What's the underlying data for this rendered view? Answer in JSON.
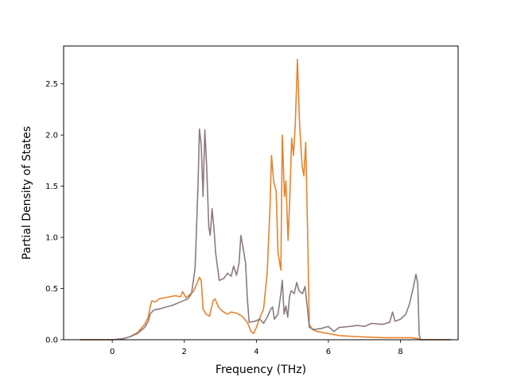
{
  "chart_data": {
    "type": "line",
    "title": "",
    "xlabel": "Frequency (THz)",
    "ylabel": "Partial Density of States",
    "xlim": [
      -1.35,
      9.6
    ],
    "ylim": [
      0,
      2.87
    ],
    "xticks": [
      0,
      2,
      4,
      6,
      8
    ],
    "xtick_labels": [
      "0",
      "2",
      "4",
      "6",
      "8"
    ],
    "yticks": [
      0.0,
      0.5,
      1.0,
      1.5,
      2.0,
      2.5
    ],
    "ytick_labels": [
      "0.0",
      "0.5",
      "1.0",
      "1.5",
      "2.0",
      "2.5"
    ],
    "grid": false,
    "legend": "none",
    "series": [
      {
        "color": "#e8832b",
        "points": [
          [
            -0.9,
            0.0
          ],
          [
            0.0,
            0.0
          ],
          [
            0.3,
            0.01
          ],
          [
            0.5,
            0.03
          ],
          [
            0.7,
            0.07
          ],
          [
            0.9,
            0.15
          ],
          [
            1.0,
            0.22
          ],
          [
            1.05,
            0.32
          ],
          [
            1.1,
            0.38
          ],
          [
            1.2,
            0.37
          ],
          [
            1.3,
            0.4
          ],
          [
            1.45,
            0.41
          ],
          [
            1.6,
            0.42
          ],
          [
            1.75,
            0.43
          ],
          [
            1.9,
            0.42
          ],
          [
            1.95,
            0.47
          ],
          [
            2.05,
            0.41
          ],
          [
            2.15,
            0.44
          ],
          [
            2.25,
            0.47
          ],
          [
            2.35,
            0.55
          ],
          [
            2.42,
            0.61
          ],
          [
            2.47,
            0.58
          ],
          [
            2.52,
            0.3
          ],
          [
            2.6,
            0.25
          ],
          [
            2.7,
            0.23
          ],
          [
            2.8,
            0.38
          ],
          [
            2.85,
            0.4
          ],
          [
            2.95,
            0.32
          ],
          [
            3.05,
            0.28
          ],
          [
            3.2,
            0.25
          ],
          [
            3.3,
            0.27
          ],
          [
            3.45,
            0.26
          ],
          [
            3.6,
            0.23
          ],
          [
            3.75,
            0.17
          ],
          [
            3.85,
            0.08
          ],
          [
            3.92,
            0.06
          ],
          [
            4.0,
            0.12
          ],
          [
            4.1,
            0.22
          ],
          [
            4.2,
            0.3
          ],
          [
            4.3,
            0.65
          ],
          [
            4.38,
            1.3
          ],
          [
            4.42,
            1.8
          ],
          [
            4.48,
            1.55
          ],
          [
            4.55,
            1.45
          ],
          [
            4.6,
            0.85
          ],
          [
            4.68,
            0.68
          ],
          [
            4.72,
            2.0
          ],
          [
            4.78,
            1.4
          ],
          [
            4.82,
            1.55
          ],
          [
            4.88,
            0.97
          ],
          [
            4.93,
            1.4
          ],
          [
            4.98,
            1.97
          ],
          [
            5.03,
            1.8
          ],
          [
            5.08,
            2.1
          ],
          [
            5.14,
            2.74
          ],
          [
            5.2,
            2.1
          ],
          [
            5.27,
            1.7
          ],
          [
            5.32,
            1.6
          ],
          [
            5.37,
            1.93
          ],
          [
            5.42,
            1.1
          ],
          [
            5.47,
            0.15
          ],
          [
            5.55,
            0.1
          ],
          [
            5.7,
            0.08
          ],
          [
            6.0,
            0.06
          ],
          [
            6.3,
            0.04
          ],
          [
            6.8,
            0.03
          ],
          [
            7.2,
            0.025
          ],
          [
            7.5,
            0.02
          ],
          [
            8.0,
            0.02
          ],
          [
            8.3,
            0.02
          ],
          [
            8.5,
            0.01
          ],
          [
            8.55,
            0.0
          ],
          [
            9.4,
            0.0
          ]
        ]
      },
      {
        "color": "#8c7a7f",
        "points": [
          [
            -0.9,
            0.0
          ],
          [
            0.0,
            0.0
          ],
          [
            0.3,
            0.01
          ],
          [
            0.5,
            0.03
          ],
          [
            0.7,
            0.06
          ],
          [
            0.9,
            0.12
          ],
          [
            1.0,
            0.18
          ],
          [
            1.05,
            0.25
          ],
          [
            1.15,
            0.29
          ],
          [
            1.3,
            0.3
          ],
          [
            1.5,
            0.32
          ],
          [
            1.7,
            0.34
          ],
          [
            1.9,
            0.37
          ],
          [
            2.1,
            0.4
          ],
          [
            2.2,
            0.45
          ],
          [
            2.3,
            0.7
          ],
          [
            2.38,
            1.5
          ],
          [
            2.42,
            2.06
          ],
          [
            2.47,
            1.9
          ],
          [
            2.52,
            1.4
          ],
          [
            2.57,
            2.05
          ],
          [
            2.62,
            1.7
          ],
          [
            2.68,
            1.1
          ],
          [
            2.72,
            1.02
          ],
          [
            2.77,
            1.28
          ],
          [
            2.82,
            1.1
          ],
          [
            2.87,
            0.85
          ],
          [
            2.97,
            0.58
          ],
          [
            3.1,
            0.6
          ],
          [
            3.2,
            0.65
          ],
          [
            3.3,
            0.62
          ],
          [
            3.37,
            0.72
          ],
          [
            3.45,
            0.63
          ],
          [
            3.52,
            0.75
          ],
          [
            3.57,
            1.02
          ],
          [
            3.62,
            0.92
          ],
          [
            3.7,
            0.75
          ],
          [
            3.75,
            0.4
          ],
          [
            3.8,
            0.17
          ],
          [
            3.95,
            0.18
          ],
          [
            4.1,
            0.2
          ],
          [
            4.2,
            0.16
          ],
          [
            4.3,
            0.22
          ],
          [
            4.4,
            0.3
          ],
          [
            4.45,
            0.32
          ],
          [
            4.5,
            0.2
          ],
          [
            4.6,
            0.25
          ],
          [
            4.68,
            0.45
          ],
          [
            4.72,
            0.58
          ],
          [
            4.77,
            0.25
          ],
          [
            4.82,
            0.33
          ],
          [
            4.87,
            0.22
          ],
          [
            4.92,
            0.42
          ],
          [
            4.97,
            0.48
          ],
          [
            5.05,
            0.45
          ],
          [
            5.12,
            0.56
          ],
          [
            5.18,
            0.48
          ],
          [
            5.28,
            0.45
          ],
          [
            5.35,
            0.52
          ],
          [
            5.42,
            0.3
          ],
          [
            5.47,
            0.12
          ],
          [
            5.6,
            0.1
          ],
          [
            5.8,
            0.11
          ],
          [
            6.0,
            0.13
          ],
          [
            6.15,
            0.08
          ],
          [
            6.3,
            0.12
          ],
          [
            6.6,
            0.13
          ],
          [
            6.8,
            0.14
          ],
          [
            7.0,
            0.13
          ],
          [
            7.2,
            0.16
          ],
          [
            7.5,
            0.15
          ],
          [
            7.7,
            0.17
          ],
          [
            7.78,
            0.27
          ],
          [
            7.85,
            0.18
          ],
          [
            8.0,
            0.2
          ],
          [
            8.15,
            0.25
          ],
          [
            8.25,
            0.35
          ],
          [
            8.35,
            0.5
          ],
          [
            8.43,
            0.64
          ],
          [
            8.48,
            0.55
          ],
          [
            8.52,
            0.05
          ],
          [
            8.55,
            0.0
          ],
          [
            9.4,
            0.0
          ]
        ]
      }
    ]
  }
}
